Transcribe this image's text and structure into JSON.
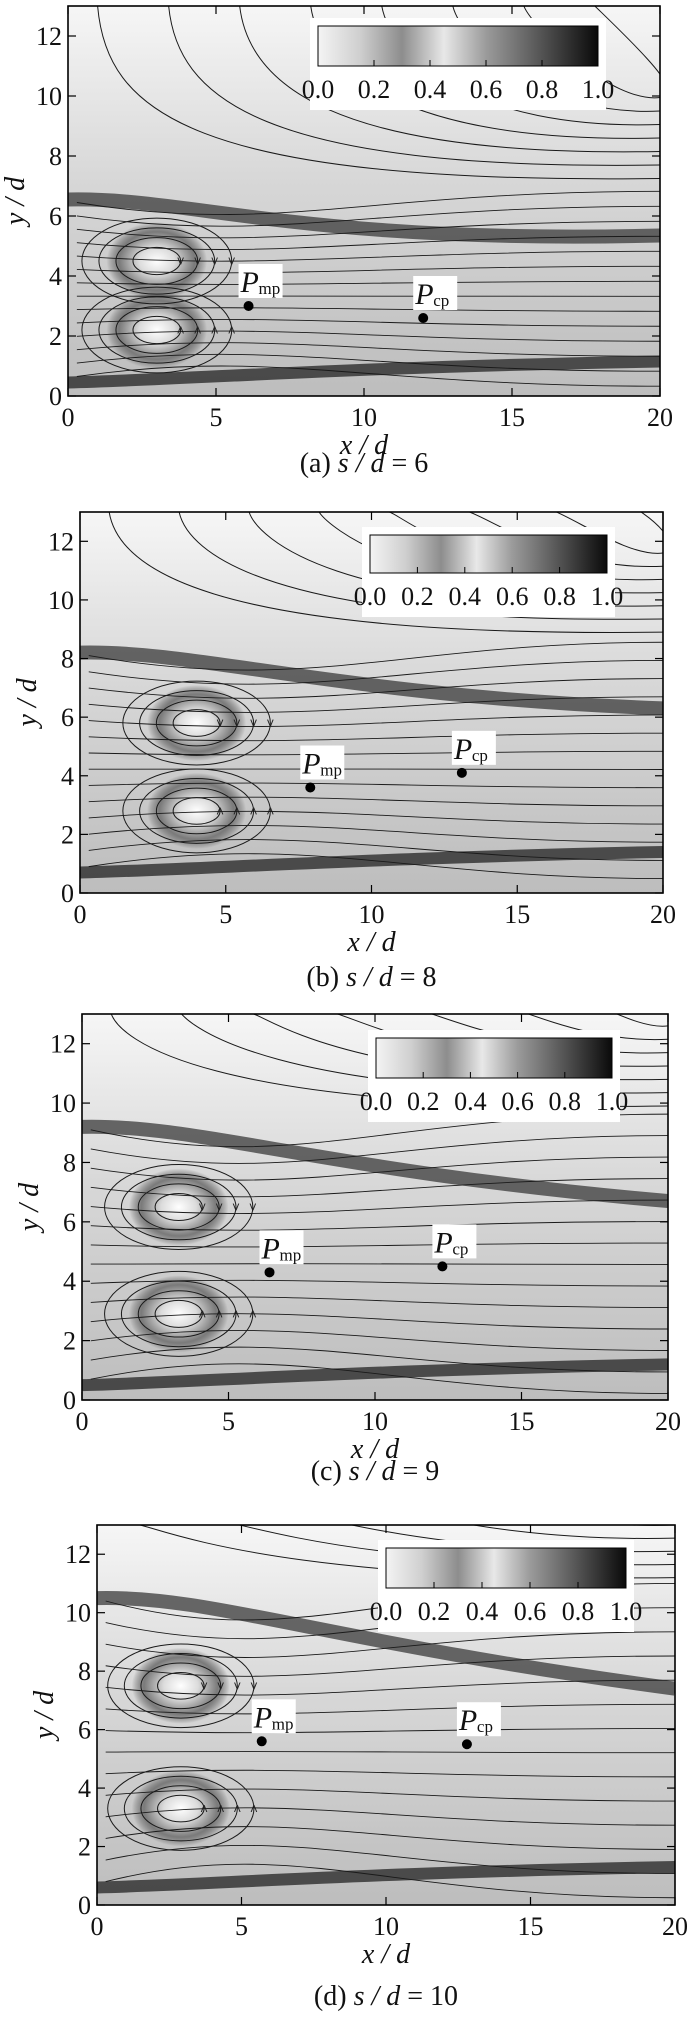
{
  "chart_data": [
    {
      "type": "contour",
      "caption": {
        "label": "(a)",
        "param": "s / d",
        "sep": "=",
        "value": "6"
      },
      "xlabel": "x / d",
      "ylabel": "y / d",
      "xlim": [
        0,
        20
      ],
      "ylim": [
        0,
        13
      ],
      "xticks": [
        0,
        5,
        10,
        15,
        20
      ],
      "yticks": [
        0,
        2,
        4,
        6,
        8,
        10,
        12
      ],
      "colorbar": {
        "ticks": [
          "0.0",
          "0.2",
          "0.4",
          "0.6",
          "0.8",
          "1.0"
        ]
      },
      "points": [
        {
          "name": "P",
          "sub": "mp",
          "x": 6.1,
          "y": 3.0
        },
        {
          "name": "P",
          "sub": "cp",
          "x": 12.0,
          "y": 2.6
        }
      ],
      "vortices": [
        {
          "x": 3.0,
          "y": 4.5
        },
        {
          "x": 3.0,
          "y": 2.2
        }
      ]
    },
    {
      "type": "contour",
      "caption": {
        "label": "(b)",
        "param": "s / d",
        "sep": "=",
        "value": "8"
      },
      "xlabel": "x / d",
      "ylabel": "y / d",
      "xlim": [
        0,
        20
      ],
      "ylim": [
        0,
        13
      ],
      "xticks": [
        0,
        5,
        10,
        15,
        20
      ],
      "yticks": [
        0,
        2,
        4,
        6,
        8,
        10,
        12
      ],
      "colorbar": {
        "ticks": [
          "0.0",
          "0.2",
          "0.4",
          "0.6",
          "0.8",
          "1.0"
        ]
      },
      "points": [
        {
          "name": "P",
          "sub": "mp",
          "x": 7.9,
          "y": 3.6
        },
        {
          "name": "P",
          "sub": "cp",
          "x": 13.1,
          "y": 4.1
        }
      ],
      "vortices": [
        {
          "x": 4.0,
          "y": 5.8
        },
        {
          "x": 4.0,
          "y": 2.8
        }
      ]
    },
    {
      "type": "contour",
      "caption": {
        "label": "(c)",
        "param": "s / d",
        "sep": "=",
        "value": "9"
      },
      "xlabel": "x / d",
      "ylabel": "y / d",
      "xlim": [
        0,
        20
      ],
      "ylim": [
        0,
        13
      ],
      "xticks": [
        0,
        5,
        10,
        15,
        20
      ],
      "yticks": [
        0,
        2,
        4,
        6,
        8,
        10,
        12
      ],
      "colorbar": {
        "ticks": [
          "0.0",
          "0.2",
          "0.4",
          "0.6",
          "0.8",
          "1.0"
        ]
      },
      "points": [
        {
          "name": "P",
          "sub": "mp",
          "x": 6.4,
          "y": 4.3
        },
        {
          "name": "P",
          "sub": "cp",
          "x": 12.3,
          "y": 4.5
        }
      ],
      "vortices": [
        {
          "x": 3.3,
          "y": 6.5
        },
        {
          "x": 3.3,
          "y": 2.9
        }
      ]
    },
    {
      "type": "contour",
      "caption": {
        "label": "(d)",
        "param": "s / d",
        "sep": "=",
        "value": "10"
      },
      "xlabel": "x / d",
      "ylabel": "y / d",
      "xlim": [
        0,
        20
      ],
      "ylim": [
        0,
        13
      ],
      "xticks": [
        0,
        5,
        10,
        15,
        20
      ],
      "yticks": [
        0,
        2,
        4,
        6,
        8,
        10,
        12
      ],
      "colorbar": {
        "ticks": [
          "0.0",
          "0.2",
          "0.4",
          "0.6",
          "0.8",
          "1.0"
        ]
      },
      "points": [
        {
          "name": "P",
          "sub": "mp",
          "x": 5.7,
          "y": 5.6
        },
        {
          "name": "P",
          "sub": "cp",
          "x": 12.8,
          "y": 5.5
        }
      ],
      "vortices": [
        {
          "x": 2.9,
          "y": 7.5
        },
        {
          "x": 2.9,
          "y": 3.3
        }
      ]
    }
  ]
}
